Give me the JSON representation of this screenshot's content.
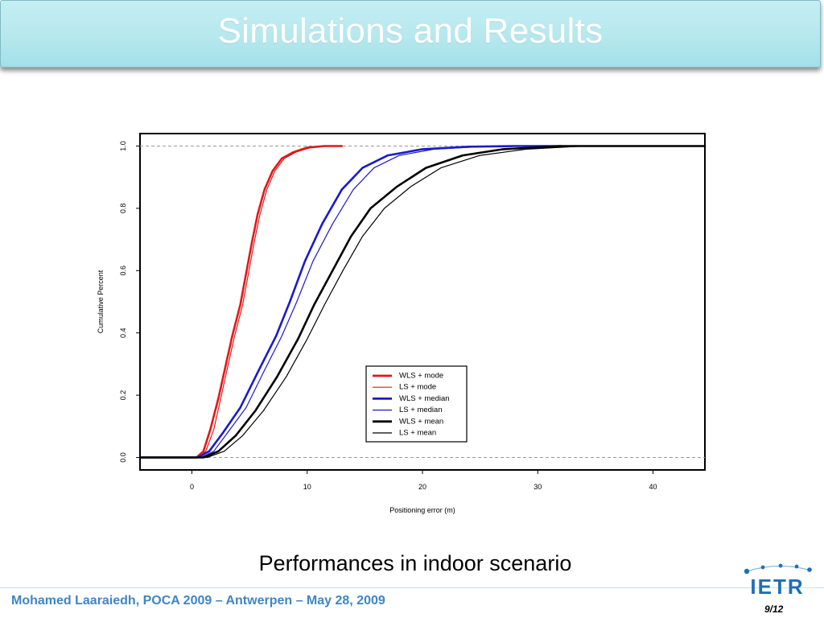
{
  "slide": {
    "title": "Simulations and Results",
    "caption": "Performances in indoor scenario",
    "footer": "Mohamed Laaraiedh, POCA 2009 – Antwerpen – May 28, 2009",
    "page_number": "9/12",
    "logo_text": "IETR"
  },
  "colors": {
    "title_bar": "#b6e8ee",
    "footer_text": "#3e85c6",
    "logo": "#1d6fb8",
    "red": "#e01818",
    "blue": "#1a1acc",
    "black": "#000000"
  },
  "chart_data": {
    "type": "line",
    "title": "",
    "xlabel": "Positioning error (m)",
    "ylabel": "Cumulative Percent",
    "xlim": [
      -4.5,
      44.5
    ],
    "ylim": [
      -0.04,
      1.04
    ],
    "x_ticks": [
      0,
      10,
      20,
      30,
      40
    ],
    "y_ticks": [
      0.0,
      0.2,
      0.4,
      0.6,
      0.8,
      1.0
    ],
    "x_tick_labels": [
      "0",
      "10",
      "20",
      "30",
      "40"
    ],
    "y_tick_labels": [
      "0.0",
      "0.2",
      "0.4",
      "0.6",
      "0.8",
      "1.0"
    ],
    "reference_lines": [
      0.0,
      1.0
    ],
    "grid": false,
    "legend_position": "bottom-right",
    "series": [
      {
        "name": "WLS + mode",
        "color": "#e01818",
        "width": "thick",
        "points": [
          [
            -4.5,
            0
          ],
          [
            0.4,
            0
          ],
          [
            1.0,
            0.02
          ],
          [
            1.6,
            0.09
          ],
          [
            2.3,
            0.19
          ],
          [
            2.9,
            0.29
          ],
          [
            3.5,
            0.39
          ],
          [
            4.2,
            0.49
          ],
          [
            4.7,
            0.59
          ],
          [
            5.2,
            0.69
          ],
          [
            5.7,
            0.78
          ],
          [
            6.3,
            0.86
          ],
          [
            7.0,
            0.92
          ],
          [
            7.8,
            0.96
          ],
          [
            8.8,
            0.98
          ],
          [
            10.0,
            0.995
          ],
          [
            11.5,
            1.0
          ],
          [
            13.0,
            1.0
          ]
        ]
      },
      {
        "name": "LS + mode",
        "color": "#e01818",
        "width": "thin",
        "points": [
          [
            -4.5,
            0
          ],
          [
            0.6,
            0
          ],
          [
            1.2,
            0.02
          ],
          [
            1.9,
            0.09
          ],
          [
            2.5,
            0.19
          ],
          [
            3.1,
            0.29
          ],
          [
            3.7,
            0.39
          ],
          [
            4.4,
            0.49
          ],
          [
            4.9,
            0.59
          ],
          [
            5.4,
            0.69
          ],
          [
            5.9,
            0.78
          ],
          [
            6.5,
            0.86
          ],
          [
            7.2,
            0.92
          ],
          [
            8.0,
            0.96
          ],
          [
            9.0,
            0.98
          ],
          [
            10.3,
            0.995
          ],
          [
            11.8,
            1.0
          ],
          [
            13.0,
            1.0
          ]
        ]
      },
      {
        "name": "WLS + median",
        "color": "#1a1acc",
        "width": "thick",
        "points": [
          [
            -4.5,
            0
          ],
          [
            0.5,
            0
          ],
          [
            1.5,
            0.02
          ],
          [
            2.7,
            0.08
          ],
          [
            4.2,
            0.16
          ],
          [
            5.8,
            0.28
          ],
          [
            7.3,
            0.39
          ],
          [
            8.5,
            0.5
          ],
          [
            9.8,
            0.63
          ],
          [
            11.3,
            0.75
          ],
          [
            13.0,
            0.86
          ],
          [
            14.8,
            0.93
          ],
          [
            17.0,
            0.97
          ],
          [
            20.0,
            0.99
          ],
          [
            24.0,
            0.998
          ],
          [
            28.0,
            1.0
          ],
          [
            32.0,
            1.0
          ]
        ]
      },
      {
        "name": "LS + median",
        "color": "#1a1acc",
        "width": "thin",
        "points": [
          [
            -4.5,
            0
          ],
          [
            0.8,
            0
          ],
          [
            1.9,
            0.02
          ],
          [
            3.1,
            0.08
          ],
          [
            4.7,
            0.16
          ],
          [
            6.3,
            0.28
          ],
          [
            7.8,
            0.39
          ],
          [
            9.1,
            0.5
          ],
          [
            10.5,
            0.63
          ],
          [
            12.2,
            0.75
          ],
          [
            14.0,
            0.86
          ],
          [
            15.8,
            0.93
          ],
          [
            18.0,
            0.97
          ],
          [
            21.0,
            0.99
          ],
          [
            25.0,
            0.998
          ],
          [
            29.0,
            1.0
          ],
          [
            32.0,
            1.0
          ]
        ]
      },
      {
        "name": "WLS + mean",
        "color": "#000000",
        "width": "thick",
        "points": [
          [
            -4.5,
            0
          ],
          [
            1.0,
            0
          ],
          [
            2.3,
            0.02
          ],
          [
            3.8,
            0.07
          ],
          [
            5.5,
            0.15
          ],
          [
            7.4,
            0.26
          ],
          [
            9.2,
            0.38
          ],
          [
            10.6,
            0.49
          ],
          [
            12.2,
            0.6
          ],
          [
            13.8,
            0.71
          ],
          [
            15.5,
            0.8
          ],
          [
            17.8,
            0.87
          ],
          [
            20.3,
            0.93
          ],
          [
            23.5,
            0.97
          ],
          [
            27.0,
            0.99
          ],
          [
            32.0,
            1.0
          ],
          [
            44.5,
            1.0
          ]
        ]
      },
      {
        "name": "LS + mean",
        "color": "#000000",
        "width": "thin",
        "points": [
          [
            -4.5,
            0
          ],
          [
            1.3,
            0
          ],
          [
            2.8,
            0.02
          ],
          [
            4.4,
            0.07
          ],
          [
            6.2,
            0.15
          ],
          [
            8.2,
            0.26
          ],
          [
            10.0,
            0.38
          ],
          [
            11.5,
            0.49
          ],
          [
            13.1,
            0.6
          ],
          [
            14.8,
            0.71
          ],
          [
            16.7,
            0.8
          ],
          [
            19.0,
            0.87
          ],
          [
            21.6,
            0.93
          ],
          [
            25.0,
            0.97
          ],
          [
            29.0,
            0.99
          ],
          [
            34.0,
            1.0
          ],
          [
            44.5,
            1.0
          ]
        ]
      }
    ]
  }
}
